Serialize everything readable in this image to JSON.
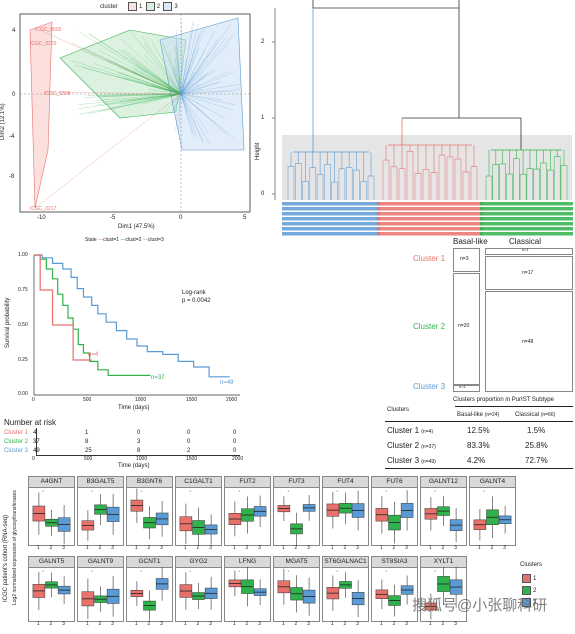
{
  "pca": {
    "legend_title": "cluster",
    "legend_items": [
      "1",
      "2",
      "3"
    ],
    "xlabel": "Dim1 (47.5%)",
    "ylabel": "Dim2 (12.1%)",
    "xticks": [
      "-10",
      "-5",
      "0",
      "5"
    ],
    "yticks": [
      "4",
      "0",
      "-4",
      "-8"
    ],
    "state_legend": [
      "State",
      "clust=1",
      "clust=2",
      "clust=3"
    ],
    "outlier_labels": [
      "ICGC_0502",
      "ICGC_0270",
      "ICGC_0339",
      "ICGC_0217"
    ],
    "colors": {
      "c1": "#e8716c",
      "c2": "#2fb24b",
      "c3": "#5b9bd5"
    }
  },
  "dendrogram": {
    "ylabel": "Height",
    "yticks": [
      "2",
      "1",
      "0"
    ]
  },
  "km": {
    "ylabel": "Survival probability",
    "xlabel": "Time (days)",
    "xticks": [
      "0",
      "500",
      "1000",
      "1500",
      "2000"
    ],
    "yticks": [
      "1.00",
      "0.75",
      "0.50",
      "0.25",
      "0.00"
    ],
    "logrank": "Log-rank",
    "pvalue": "p = 0.0042",
    "n_labels": [
      "n=4",
      "n=37",
      "n=49"
    ],
    "risk_title": "Number at risk",
    "risk_rows": [
      {
        "label": "Cluster 1",
        "values": [
          "4",
          "1",
          "0",
          "0",
          "0"
        ]
      },
      {
        "label": "Cluster 2",
        "values": [
          "37",
          "8",
          "3",
          "0",
          "0"
        ]
      },
      {
        "label": "Cluster 3",
        "values": [
          "49",
          "25",
          "8",
          "2",
          "0"
        ]
      }
    ],
    "risk_xticks": [
      "0",
      "500",
      "1000",
      "1500",
      "2000"
    ],
    "risk_xlabel": "Time (days)"
  },
  "mosaic": {
    "col_labels": [
      "Basal-like",
      "Classical"
    ],
    "row_labels": [
      "Cluster 1",
      "Cluster 2",
      "Cluster 3"
    ],
    "cells": [
      "n=3",
      "n=1",
      "n=20",
      "n=17",
      "n=1",
      "n=48"
    ]
  },
  "table": {
    "title": "Clusters proportion in PurIST Subtype",
    "header_clusters": "Clusters",
    "header_basal": "Basal-like",
    "header_basal_n": "(n=24)",
    "header_classical": "Classical",
    "header_classical_n": "(n=66)",
    "rows": [
      {
        "cluster": "Cluster 1",
        "n": "(n=4)",
        "basal": "12.5%",
        "classical": "1.5%"
      },
      {
        "cluster": "Cluster 2",
        "n": "(n=37)",
        "basal": "83.3%",
        "classical": "25.8%"
      },
      {
        "cluster": "Cluster 3",
        "n": "(n=49)",
        "basal": "4.2%",
        "classical": "72.7%"
      }
    ]
  },
  "boxplots": {
    "ylabel_outer": "ICGC patient's cohort (RNA-seq)",
    "ylabel_inner": "Log2 normalized expression of glycosyltransferases",
    "genes_row1": [
      "A4GNT",
      "B3GALT5",
      "B3GNT6",
      "C1GALT1",
      "FUT2",
      "FUT3",
      "FUT4",
      "FUT6",
      "GALNT12",
      "GALNT4"
    ],
    "genes_row2": [
      "GALNT5",
      "GALNT9",
      "GCNT1",
      "GYG2",
      "LFNG",
      "MGAT5",
      "ST6GALNAC1",
      "ST8SIA3",
      "XYLT1"
    ],
    "xticks": [
      "1",
      "2",
      "3"
    ],
    "legend_title": "Clusters",
    "legend_items": [
      "1",
      "2",
      "3"
    ]
  },
  "watermark": "搜狐号@小张聊科研"
}
